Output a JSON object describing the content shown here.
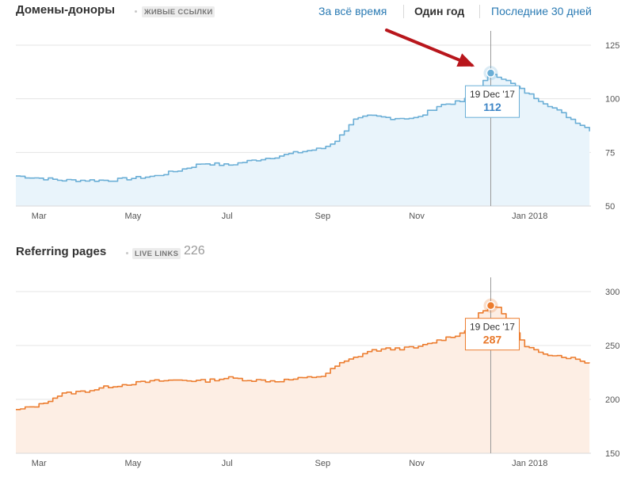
{
  "chart1": {
    "title": "Домены-доноры",
    "badge": "ЖИВЫЕ ССЫЛКИ",
    "range_options": [
      {
        "label": "За всё время",
        "active": false
      },
      {
        "label": "Один год",
        "active": true
      },
      {
        "label": "Последние 30 дней",
        "active": false
      }
    ]
  },
  "chart2": {
    "title": "Referring pages",
    "badge": "LIVE LINKS",
    "count": "226"
  },
  "colors": {
    "blue_line": "#6aaed6",
    "blue_fill": "#e9f4fb",
    "blue_value": "#3d85c6",
    "orange_line": "#ec7c2e",
    "orange_fill": "#fdeee4",
    "orange_value": "#e8782a",
    "arrow": "#b8161c",
    "grid": "#e4e4e4"
  },
  "chart_data": [
    {
      "type": "area",
      "title": "Домены-доноры",
      "xlabel": "",
      "ylabel": "",
      "ylim": [
        50,
        125
      ],
      "y_ticks": [
        "125",
        "100",
        "75",
        "50"
      ],
      "x_tick_labels": [
        "Mar",
        "May",
        "Jul",
        "Sep",
        "Nov",
        "Jan 2018"
      ],
      "x": [
        "2017-02-14",
        "2017-03-01",
        "2017-03-15",
        "2017-04-01",
        "2017-04-15",
        "2017-05-01",
        "2017-05-15",
        "2017-06-01",
        "2017-06-15",
        "2017-07-01",
        "2017-07-15",
        "2017-08-01",
        "2017-08-15",
        "2017-09-01",
        "2017-09-10",
        "2017-09-20",
        "2017-10-01",
        "2017-10-15",
        "2017-11-01",
        "2017-11-15",
        "2017-12-01",
        "2017-12-10",
        "2017-12-19",
        "2017-12-25",
        "2018-01-10",
        "2018-01-25",
        "2018-02-10",
        "2018-02-22"
      ],
      "series": [
        {
          "values": [
            64,
            63,
            62,
            62,
            62,
            63,
            64,
            67,
            70,
            69,
            71,
            73,
            75,
            77,
            81,
            90,
            92,
            91,
            91,
            97,
            99,
            105,
            112,
            110,
            103,
            97,
            90,
            85
          ]
        }
      ],
      "highlight": {
        "date": "19 Dec '17",
        "value": "112"
      },
      "grid": true
    },
    {
      "type": "area",
      "title": "Referring pages",
      "xlabel": "",
      "ylabel": "",
      "ylim": [
        150,
        300
      ],
      "y_ticks": [
        "300",
        "250",
        "200",
        "150"
      ],
      "x_tick_labels": [
        "Mar",
        "May",
        "Jul",
        "Sep",
        "Nov",
        "Jan 2018"
      ],
      "x": [
        "2017-02-14",
        "2017-03-01",
        "2017-03-15",
        "2017-04-01",
        "2017-04-15",
        "2017-05-01",
        "2017-05-15",
        "2017-06-01",
        "2017-06-15",
        "2017-07-01",
        "2017-07-15",
        "2017-08-01",
        "2017-08-15",
        "2017-09-01",
        "2017-09-10",
        "2017-09-20",
        "2017-10-01",
        "2017-10-15",
        "2017-11-01",
        "2017-11-15",
        "2017-12-01",
        "2017-12-10",
        "2017-12-19",
        "2017-12-25",
        "2018-01-10",
        "2018-01-25",
        "2018-02-10",
        "2018-02-22"
      ],
      "series": [
        {
          "values": [
            190,
            195,
            205,
            208,
            212,
            215,
            217,
            218,
            217,
            220,
            218,
            217,
            219,
            222,
            232,
            238,
            245,
            247,
            248,
            255,
            262,
            278,
            287,
            283,
            248,
            242,
            238,
            233
          ]
        }
      ],
      "highlight": {
        "date": "19 Dec '17",
        "value": "287"
      },
      "grid": true
    }
  ]
}
